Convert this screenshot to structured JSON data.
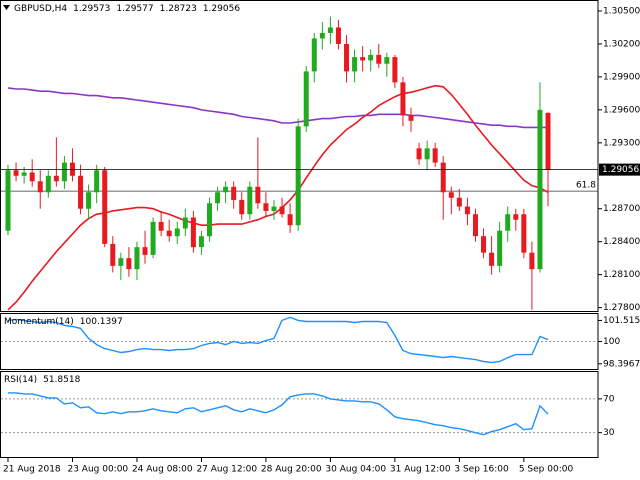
{
  "chart_data": [
    {
      "type": "candlestick",
      "title": "GBPUSD,H4",
      "categories": [
        "21 Aug 2018",
        null,
        null,
        null,
        null,
        null,
        null,
        null,
        "23 Aug 00:00",
        null,
        null,
        null,
        null,
        null,
        null,
        null,
        "24 Aug 08:00",
        null,
        null,
        null,
        null,
        null,
        null,
        null,
        "27 Aug 12:00",
        null,
        null,
        null,
        null,
        null,
        null,
        null,
        "28 Aug 20:00",
        null,
        null,
        null,
        null,
        null,
        null,
        null,
        "30 Aug 04:00",
        null,
        null,
        null,
        null,
        null,
        null,
        null,
        "31 Aug 12:00",
        null,
        null,
        null,
        null,
        null,
        null,
        null,
        "3 Sep 16:00",
        null,
        null,
        null,
        null,
        null,
        null,
        null,
        "5 Sep 00:00",
        null,
        null,
        null
      ],
      "open": [
        1.285,
        1.2905,
        1.29,
        1.2903,
        1.2895,
        1.2885,
        1.29,
        1.2895,
        1.2912,
        1.29,
        1.287,
        1.2885,
        1.2905,
        1.2838,
        1.2818,
        1.2825,
        1.2815,
        1.2835,
        1.2828,
        1.2858,
        1.285,
        1.2845,
        1.2852,
        1.2862,
        1.2835,
        1.2845,
        1.2875,
        1.2885,
        1.289,
        1.2878,
        1.2865,
        1.289,
        1.2875,
        1.2868,
        1.2872,
        1.2865,
        1.2855,
        1.2945,
        1.2995,
        1.3025,
        1.303,
        1.3035,
        1.302,
        1.2995,
        1.3008,
        1.3005,
        1.301,
        1.3002,
        1.3008,
        1.2985,
        1.2955,
        1.2925,
        1.2915,
        1.2925,
        1.2912,
        1.2885,
        1.288,
        1.2872,
        1.2865,
        1.2845,
        1.283,
        1.2818,
        1.285,
        1.2865,
        1.2865,
        1.283,
        1.2815,
        1.29573
      ],
      "high": [
        1.291,
        1.2912,
        1.2908,
        1.2915,
        1.2905,
        1.2905,
        1.2935,
        1.2918,
        1.2925,
        1.291,
        1.2892,
        1.291,
        1.2908,
        1.2845,
        1.283,
        1.2835,
        1.284,
        1.285,
        1.2862,
        1.2868,
        1.286,
        1.2858,
        1.287,
        1.2868,
        1.285,
        1.288,
        1.289,
        1.2895,
        1.2895,
        1.2885,
        1.2895,
        1.2935,
        1.2885,
        1.2878,
        1.288,
        1.2875,
        1.2952,
        1.3,
        1.303,
        1.304,
        1.3045,
        1.3042,
        1.3028,
        1.3015,
        1.3018,
        1.3015,
        1.302,
        1.3012,
        1.301,
        1.299,
        1.2962,
        1.293,
        1.2932,
        1.293,
        1.2918,
        1.289,
        1.2888,
        1.288,
        1.287,
        1.2852,
        1.2845,
        1.2858,
        1.2872,
        1.287,
        1.287,
        1.284,
        1.2985,
        1.29577
      ],
      "low": [
        1.2846,
        1.2895,
        1.2893,
        1.289,
        1.287,
        1.288,
        1.289,
        1.2888,
        1.2895,
        1.2865,
        1.286,
        1.2875,
        1.2835,
        1.2812,
        1.2805,
        1.2808,
        1.2805,
        1.282,
        1.2825,
        1.2845,
        1.284,
        1.2838,
        1.2845,
        1.283,
        1.2828,
        1.284,
        1.2868,
        1.2875,
        1.287,
        1.286,
        1.286,
        1.287,
        1.2862,
        1.286,
        1.2862,
        1.2848,
        1.285,
        1.294,
        1.2985,
        1.3015,
        1.302,
        1.3015,
        1.2985,
        1.2985,
        1.2995,
        1.2995,
        1.2998,
        1.299,
        1.298,
        1.2945,
        1.294,
        1.291,
        1.2905,
        1.2908,
        1.286,
        1.2865,
        1.2868,
        1.2855,
        1.284,
        1.2825,
        1.281,
        1.2812,
        1.284,
        1.285,
        1.2825,
        1.2778,
        1.2812,
        1.28723
      ],
      "close": [
        1.2905,
        1.29,
        1.2903,
        1.2895,
        1.2885,
        1.29,
        1.2895,
        1.2912,
        1.29,
        1.287,
        1.2885,
        1.2905,
        1.2838,
        1.2818,
        1.2825,
        1.2815,
        1.2835,
        1.2828,
        1.2858,
        1.285,
        1.2845,
        1.2852,
        1.2862,
        1.2835,
        1.2845,
        1.2875,
        1.2885,
        1.289,
        1.2878,
        1.2865,
        1.289,
        1.2875,
        1.2868,
        1.2872,
        1.2865,
        1.2855,
        1.2945,
        1.2995,
        1.3025,
        1.303,
        1.3035,
        1.302,
        1.2995,
        1.3008,
        1.3005,
        1.301,
        1.3002,
        1.3008,
        1.2985,
        1.2955,
        1.295,
        1.2915,
        1.2925,
        1.2912,
        1.2885,
        1.288,
        1.2872,
        1.2865,
        1.2845,
        1.283,
        1.2818,
        1.285,
        1.2865,
        1.286,
        1.283,
        1.2815,
        1.296,
        1.29056
      ],
      "up_color": "#1faa1f",
      "down_color": "#e8191f",
      "lines": [
        {
          "color": "#e8191f",
          "values": [
            1.2778,
            1.2785,
            1.2794,
            1.2804,
            1.2813,
            1.2822,
            1.2831,
            1.2839,
            1.2847,
            1.2855,
            1.2861,
            1.2865,
            1.2866,
            1.2868,
            1.2869,
            1.287,
            1.2871,
            1.2871,
            1.287,
            1.2867,
            1.2865,
            1.2862,
            1.2859,
            1.2857,
            1.2855,
            1.2855,
            1.2856,
            1.2856,
            1.2856,
            1.2856,
            1.2858,
            1.286,
            1.2863,
            1.2865,
            1.2871,
            1.2878,
            1.2887,
            1.2898,
            1.2909,
            1.2919,
            1.2928,
            1.2935,
            1.2942,
            1.2947,
            1.2953,
            1.2958,
            1.2964,
            1.2968,
            1.2972,
            1.2975,
            1.2976,
            1.2978,
            1.298,
            1.2982,
            1.2981,
            1.2974,
            1.2965,
            1.2956,
            1.2946,
            1.2937,
            1.2928,
            1.292,
            1.2912,
            1.2904,
            1.2896,
            1.2891,
            1.2889,
            1.2885
          ]
        },
        {
          "color": "#8e35c9",
          "values": [
            1.298,
            1.2979,
            1.2979,
            1.2978,
            1.2977,
            1.2977,
            1.2976,
            1.2975,
            1.2975,
            1.2974,
            1.2973,
            1.2973,
            1.2972,
            1.2971,
            1.2971,
            1.297,
            1.2969,
            1.2968,
            1.2967,
            1.2966,
            1.2965,
            1.2964,
            1.2963,
            1.2962,
            1.296,
            1.2959,
            1.2958,
            1.2957,
            1.2956,
            1.2954,
            1.2953,
            1.2952,
            1.2951,
            1.295,
            1.2948,
            1.2948,
            1.2949,
            1.295,
            1.2951,
            1.2952,
            1.2952,
            1.2953,
            1.2954,
            1.2954,
            1.2955,
            1.2955,
            1.2956,
            1.2956,
            1.2956,
            1.2956,
            1.2955,
            1.2955,
            1.2954,
            1.2953,
            1.2952,
            1.2951,
            1.295,
            1.2949,
            1.2948,
            1.2947,
            1.2946,
            1.2946,
            1.2945,
            1.2945,
            1.2944,
            1.2944,
            1.2944,
            1.2944
          ]
        }
      ],
      "ylim": [
        1.2776,
        1.306
      ],
      "yticks": [
        {
          "value": 1.305,
          "label": "1.30500"
        },
        {
          "value": 1.302,
          "label": "1.30200"
        },
        {
          "value": 1.299,
          "label": "1.29900"
        },
        {
          "value": 1.296,
          "label": "1.29600"
        },
        {
          "value": 1.293,
          "label": "1.29300"
        },
        {
          "value": 1.287,
          "label": "1.28700"
        },
        {
          "value": 1.284,
          "label": "1.28400"
        },
        {
          "value": 1.281,
          "label": "1.28100"
        },
        {
          "value": 1.278,
          "label": "1.27800"
        }
      ],
      "price_line": true,
      "annotations": [
        {
          "label": "61.8",
          "value": 1.2886
        }
      ]
    },
    {
      "type": "line",
      "title": "Momentum(14)",
      "series": [
        {
          "color": "#1e90ff",
          "values": [
            101.52,
            101.59,
            101.52,
            101.44,
            101.37,
            101.44,
            101.37,
            101.16,
            101.08,
            100.94,
            100.22,
            99.78,
            99.49,
            99.35,
            99.21,
            99.28,
            99.42,
            99.49,
            99.42,
            99.42,
            99.35,
            99.42,
            99.42,
            99.49,
            99.71,
            99.86,
            99.93,
            99.78,
            100,
            99.86,
            99.93,
            99.86,
            100.07,
            100.22,
            101.52,
            101.73,
            101.52,
            101.44,
            101.44,
            101.44,
            101.44,
            101.44,
            101.44,
            101.37,
            101.44,
            101.44,
            101.44,
            101.37,
            100.43,
            99.35,
            99.13,
            99.06,
            98.99,
            98.92,
            98.84,
            98.92,
            98.84,
            98.77,
            98.7,
            98.56,
            98.48,
            98.56,
            98.84,
            99.06,
            99.06,
            99.06,
            100.36,
            100.1397
          ]
        }
      ],
      "ylim": [
        97.95,
        102.05
      ],
      "yticks": [
        101.5152,
        100,
        98.3967
      ],
      "levels": [
        100
      ]
    },
    {
      "type": "line",
      "title": "RSI(14)",
      "series": [
        {
          "color": "#1e90ff",
          "values": [
            77.1,
            77.1,
            75.9,
            75.9,
            73.5,
            71.2,
            71.2,
            64.1,
            65.3,
            59.4,
            60.6,
            53.5,
            52.4,
            54.7,
            52.4,
            54.7,
            54.7,
            55.9,
            58.2,
            55.9,
            54.7,
            53.5,
            58.2,
            59.4,
            54.7,
            57.1,
            59.4,
            61.8,
            57.1,
            54.7,
            58.2,
            55.9,
            53.5,
            57.1,
            62.9,
            72.4,
            74.7,
            75.9,
            75.9,
            73.5,
            70,
            68.8,
            67.6,
            67.6,
            66.5,
            66.5,
            64.1,
            57.1,
            48.8,
            46.5,
            45.3,
            44.1,
            41.8,
            39.4,
            38.2,
            35.9,
            34.7,
            32.4,
            30,
            27.6,
            31.2,
            33.5,
            37.1,
            40.6,
            33.5,
            34.7,
            61.8,
            51.8518
          ]
        }
      ],
      "ylim": [
        0,
        103
      ],
      "yticks": [
        70,
        30
      ],
      "levels": [
        70,
        30
      ]
    }
  ]
}
